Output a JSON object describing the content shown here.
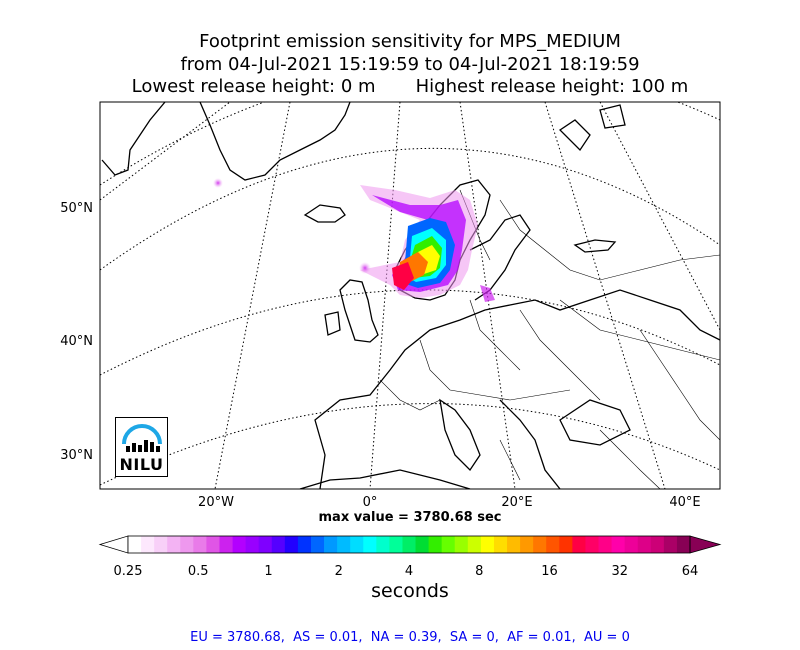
{
  "title": {
    "line1": "Footprint emission sensitivity for MPS_MEDIUM",
    "line2": "from 04-Jul-2021 15:19:59 to 04-Jul-2021 18:19:59",
    "line3_left": "Lowest release height: 0 m",
    "line3_right": "Highest release height: 100 m"
  },
  "chart_data": {
    "type": "heatmap",
    "map_projection": "polar-stereographic",
    "lat_labels": [
      "50°N",
      "40°N",
      "30°N"
    ],
    "lon_labels": [
      "20°W",
      "0°",
      "20°E",
      "40°E"
    ],
    "max_value_text": "max value = 3780.68 sec",
    "colorbar": {
      "ticks": [
        "0.25",
        "0.5",
        "1",
        "2",
        "4",
        "8",
        "16",
        "32",
        "64"
      ],
      "label": "seconds",
      "scale": "log",
      "extend": "both",
      "colors": [
        "#ffffff",
        "#fde8fd",
        "#f8d0f8",
        "#f3b3f3",
        "#ee98ee",
        "#e97be9",
        "#e055e6",
        "#cc22ee",
        "#b300ff",
        "#9900ff",
        "#7f00ff",
        "#5500ff",
        "#2200ff",
        "#0033ff",
        "#0066ff",
        "#0099ff",
        "#00bbff",
        "#00ddff",
        "#00ffff",
        "#00ffcc",
        "#00ff99",
        "#00ee66",
        "#00dd33",
        "#33ee00",
        "#66ff00",
        "#99ff00",
        "#ccff00",
        "#ffff00",
        "#ffdd00",
        "#ffbb00",
        "#ff9900",
        "#ff7700",
        "#ff5500",
        "#ff3300",
        "#ff0044",
        "#ff0066",
        "#ff0088",
        "#ff00aa",
        "#ee0099",
        "#dd0088",
        "#cc0077",
        "#aa0066",
        "#880055"
      ]
    },
    "stats_text": "EU = 3780.68,  AS = 0.01,  NA = 0.39,  SA = 0,  AF = 0.01,  AU = 0"
  },
  "logo": {
    "text": "NILU"
  }
}
